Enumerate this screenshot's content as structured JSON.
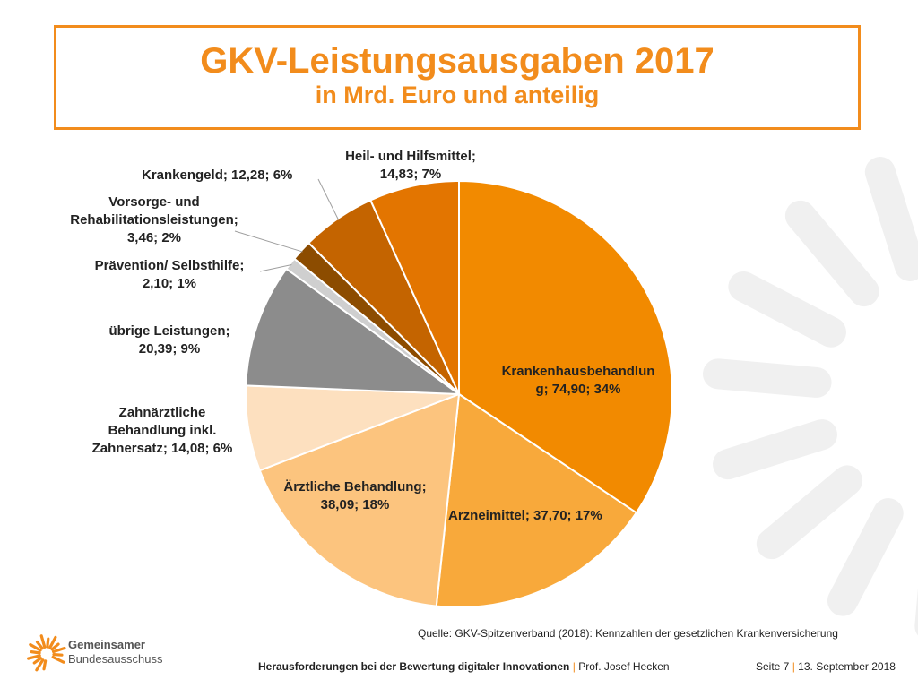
{
  "header": {
    "title": "GKV-Leistungsausgaben 2017",
    "subtitle": "in Mrd. Euro und anteilig"
  },
  "chart_data": {
    "type": "pie",
    "title": "GKV-Leistungsausgaben 2017",
    "subtitle": "in Mrd. Euro und anteilig",
    "slices": [
      {
        "name": "Krankenhausbehandlung",
        "value": 74.9,
        "percent": 34,
        "label_lines": [
          "Krankenhausbehandlun",
          "g; 74,90; 34%"
        ],
        "color": "#f28a00"
      },
      {
        "name": "Arzneimittel",
        "value": 37.7,
        "percent": 17,
        "label_lines": [
          "Arzneimittel; 37,70; 17%"
        ],
        "color": "#f8a93b"
      },
      {
        "name": "Ärztliche Behandlung",
        "value": 38.09,
        "percent": 18,
        "label_lines": [
          "Ärztliche Behandlung;",
          "38,09; 18%"
        ],
        "color": "#fcc47e"
      },
      {
        "name": "Zahnärztliche Behandlung inkl. Zahnersatz",
        "value": 14.08,
        "percent": 6,
        "label_lines": [
          "Zahnärztliche",
          "Behandlung inkl.",
          "Zahnersatz; 14,08; 6%"
        ],
        "color": "#fde0bf"
      },
      {
        "name": "übrige Leistungen",
        "value": 20.39,
        "percent": 9,
        "label_lines": [
          "übrige Leistungen;",
          "20,39; 9%"
        ],
        "color": "#8c8c8c"
      },
      {
        "name": "Prävention/ Selbsthilfe",
        "value": 2.1,
        "percent": 1,
        "label_lines": [
          "Prävention/ Selbsthilfe;",
          "2,10; 1%"
        ],
        "color": "#cfcfcf"
      },
      {
        "name": "Vorsorge- und Rehabilitationsleistungen",
        "value": 3.46,
        "percent": 2,
        "label_lines": [
          "Vorsorge- und",
          "Rehabilitationsleistungen;",
          "3,46; 2%"
        ],
        "color": "#8c4c00"
      },
      {
        "name": "Krankengeld",
        "value": 12.28,
        "percent": 6,
        "label_lines": [
          "Krankengeld; 12,28; 6%"
        ],
        "color": "#c46400"
      },
      {
        "name": "Heil- und Hilfsmittel",
        "value": 14.83,
        "percent": 7,
        "label_lines": [
          "Heil- und Hilfsmittel;",
          "14,83; 7%"
        ],
        "color": "#e37500"
      }
    ]
  },
  "source": "Quelle: GKV-Spitzenverband (2018): Kennzahlen der gesetzlichen Krankenversicherung",
  "footer": {
    "presentation_title": "Herausforderungen bei der Bewertung digitaler Innovationen",
    "separator": "|",
    "author": "Prof. Josef Hecken",
    "page": "Seite 7",
    "date": "13. September 2018"
  },
  "logo": {
    "line1": "Gemeinsamer",
    "line2": "Bundesausschuss",
    "color": "#f28c1c"
  }
}
